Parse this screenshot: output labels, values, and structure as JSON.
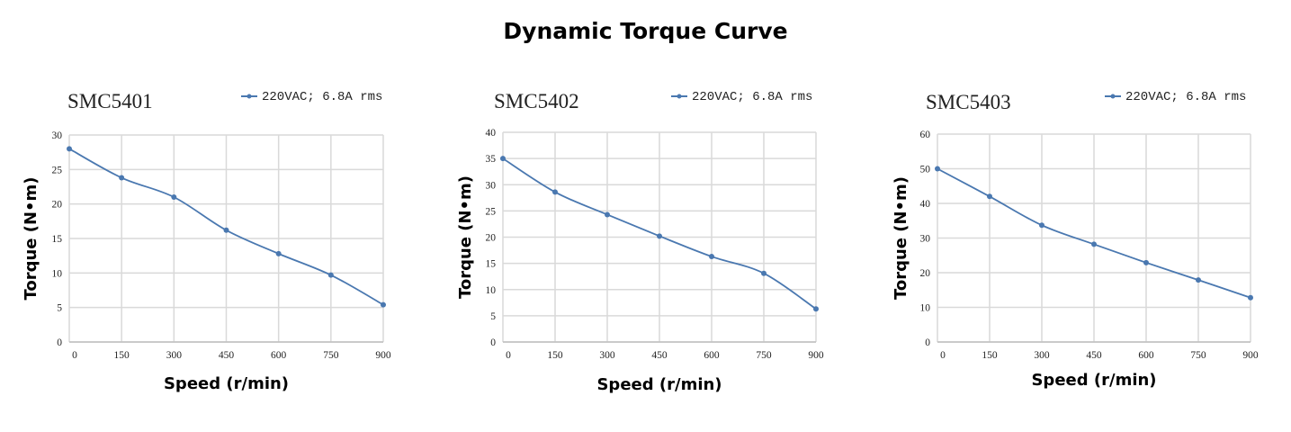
{
  "title": "Dynamic Torque Curve",
  "colors": {
    "series": "#4a78b0",
    "grid": "#d9d9d9"
  },
  "chart_data": [
    {
      "type": "line",
      "title": "SMC5401",
      "xlabel": "Speed (r/min)",
      "ylabel": "Torque (N•m)",
      "legend_position": "top-right",
      "grid": true,
      "x": [
        0,
        150,
        300,
        450,
        600,
        750,
        900
      ],
      "x_ticks": [
        "0",
        "150",
        "300",
        "450",
        "600",
        "750",
        "900"
      ],
      "xlim": [
        0,
        900
      ],
      "ylim": [
        0,
        30
      ],
      "y_ticks": [
        "0",
        "5",
        "10",
        "15",
        "20",
        "25",
        "30"
      ],
      "series": [
        {
          "name": "220VAC; 6.8A rms",
          "values": [
            28,
            23.8,
            21,
            16.2,
            12.8,
            9.7,
            5.4
          ]
        }
      ]
    },
    {
      "type": "line",
      "title": "SMC5402",
      "xlabel": "Speed (r/min)",
      "ylabel": "Torque (N•m)",
      "legend_position": "top-right",
      "grid": true,
      "x": [
        0,
        150,
        300,
        450,
        600,
        750,
        900
      ],
      "x_ticks": [
        "0",
        "150",
        "300",
        "450",
        "600",
        "750",
        "900"
      ],
      "xlim": [
        0,
        900
      ],
      "ylim": [
        0,
        40
      ],
      "y_ticks": [
        "0",
        "5",
        "10",
        "15",
        "20",
        "25",
        "30",
        "35",
        "40"
      ],
      "series": [
        {
          "name": "220VAC; 6.8A rms",
          "values": [
            35,
            28.6,
            24.3,
            20.2,
            16.3,
            13.1,
            6.3
          ]
        }
      ]
    },
    {
      "type": "line",
      "title": "SMC5403",
      "xlabel": "Speed (r/min)",
      "ylabel": "Torque (N•m)",
      "legend_position": "top-right",
      "grid": true,
      "x": [
        0,
        150,
        300,
        450,
        600,
        750,
        900
      ],
      "x_ticks": [
        "0",
        "150",
        "300",
        "450",
        "600",
        "750",
        "900"
      ],
      "xlim": [
        0,
        900
      ],
      "ylim": [
        0,
        60
      ],
      "y_ticks": [
        "0",
        "10",
        "20",
        "30",
        "40",
        "50",
        "60"
      ],
      "series": [
        {
          "name": "220VAC; 6.8A rms",
          "values": [
            50,
            42,
            33.7,
            28.2,
            22.9,
            17.9,
            12.8
          ]
        }
      ]
    }
  ]
}
